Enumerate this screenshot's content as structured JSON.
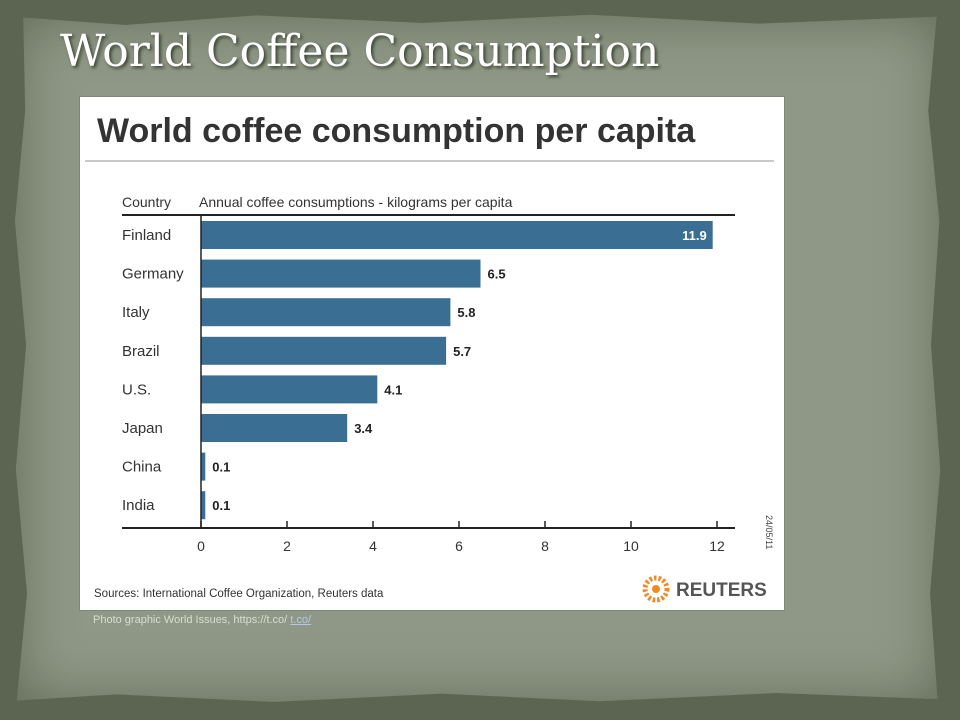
{
  "slide": {
    "title": "World Coffee Consumption",
    "caption_text": "Photo graphic World Issues, https://t.co/",
    "caption_link": "t.co/"
  },
  "colors": {
    "bar": "#3a6f93",
    "slide_background": "#8f9886",
    "page_background": "#5c6552"
  },
  "icons": [
    "reuters-logo-icon"
  ],
  "chart_data": {
    "type": "bar",
    "orientation": "horizontal",
    "title": "World coffee consumption per capita",
    "category_header": "Country",
    "value_header": "Annual coffee consumptions - kilograms per capita",
    "categories": [
      "Finland",
      "Germany",
      "Italy",
      "Brazil",
      "U.S.",
      "Japan",
      "China",
      "India"
    ],
    "values": [
      11.9,
      6.5,
      5.8,
      5.7,
      4.1,
      3.4,
      0.1,
      0.1
    ],
    "value_labels": [
      "11.9",
      "6.5",
      "5.8",
      "5.7",
      "4.1",
      "3.4",
      "0.1",
      "0.1"
    ],
    "xlim": [
      0,
      12
    ],
    "xticks": [
      0,
      2,
      4,
      6,
      8,
      10,
      12
    ],
    "grid": false,
    "date": "24/05/11",
    "source": "Sources: International Coffee Organization, Reuters data",
    "brand": "REUTERS"
  }
}
